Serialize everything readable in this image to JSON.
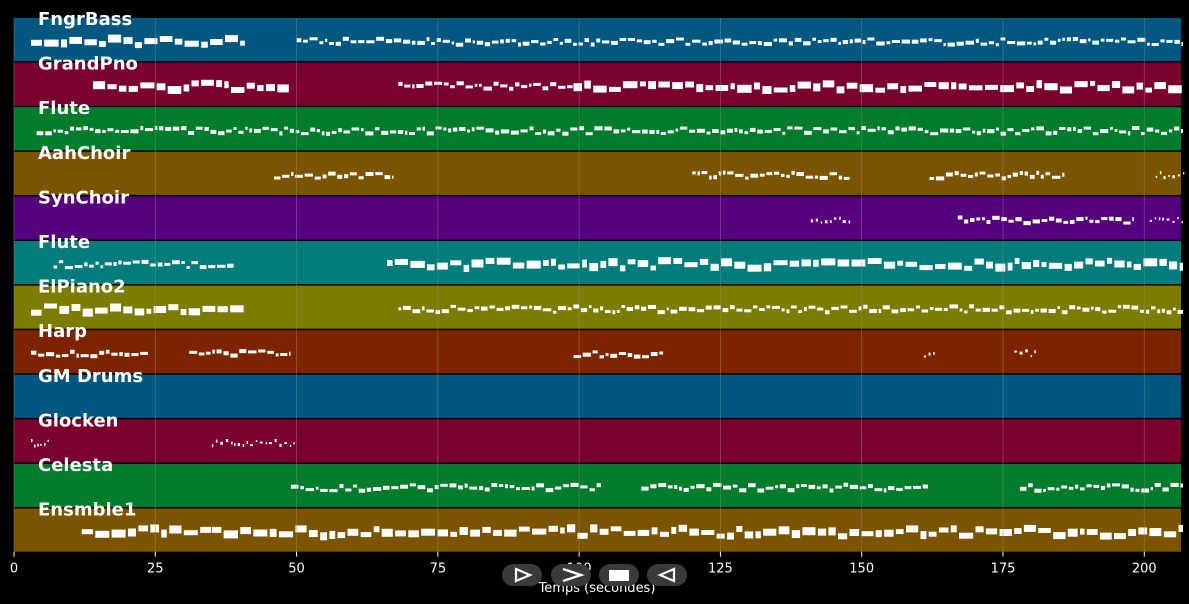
{
  "colors": {
    "background": "#000000",
    "note": "#ffffff",
    "grid": "#8a8a8a",
    "label": "#ffffff",
    "palette": [
      "#005780",
      "#7a0030",
      "#007c2a",
      "#7c5400",
      "#55007c",
      "#007c7c",
      "#7c7c00",
      "#7c2400"
    ]
  },
  "x_axis": {
    "label": "Temps (secondes)",
    "min": 0,
    "max": 206.5,
    "ticks": [
      0,
      25,
      50,
      75,
      100,
      125,
      150,
      175,
      200
    ]
  },
  "tracks": [
    {
      "name": "FngrBass",
      "color": "#005780",
      "segments": [
        [
          3,
          41,
          3
        ],
        [
          50,
          207,
          2
        ]
      ]
    },
    {
      "name": "GrandPno",
      "color": "#7a0030",
      "segments": [
        [
          14,
          49,
          3
        ],
        [
          68,
          99,
          2
        ],
        [
          99,
          207,
          3
        ]
      ]
    },
    {
      "name": "Flute",
      "color": "#007c2a",
      "segments": [
        [
          4,
          207,
          2
        ]
      ]
    },
    {
      "name": "AahChoir",
      "color": "#7c5400",
      "segments": [
        [
          46,
          67,
          2
        ],
        [
          120,
          148,
          2
        ],
        [
          162,
          186,
          2
        ],
        [
          202,
          207,
          1
        ]
      ]
    },
    {
      "name": "SynChoir",
      "color": "#55007c",
      "segments": [
        [
          141,
          148,
          1
        ],
        [
          167,
          198,
          2
        ],
        [
          201,
          207,
          1
        ]
      ]
    },
    {
      "name": "Flute",
      "color": "#007c7c",
      "segments": [
        [
          7,
          39,
          2
        ],
        [
          66,
          207,
          3
        ]
      ]
    },
    {
      "name": "ElPiano2",
      "color": "#7c7c00",
      "segments": [
        [
          3,
          41,
          3
        ],
        [
          68,
          207,
          2
        ]
      ]
    },
    {
      "name": "Harp",
      "color": "#7c2400",
      "segments": [
        [
          3,
          24,
          2
        ],
        [
          31,
          49,
          2
        ],
        [
          99,
          115,
          2
        ],
        [
          161,
          163,
          1
        ],
        [
          177,
          181,
          1
        ]
      ]
    },
    {
      "name": "GM Drums",
      "color": "#005780",
      "segments": []
    },
    {
      "name": "Glocken",
      "color": "#7a0030",
      "segments": [
        [
          3,
          6,
          1
        ],
        [
          35,
          50,
          1
        ]
      ]
    },
    {
      "name": "Celesta",
      "color": "#007c2a",
      "segments": [
        [
          49,
          104,
          2
        ],
        [
          111,
          162,
          2
        ],
        [
          178,
          207,
          2
        ]
      ]
    },
    {
      "name": "Ensmble1",
      "color": "#7c5400",
      "segments": [
        [
          12,
          35,
          3
        ],
        [
          35,
          207,
          3
        ]
      ]
    }
  ],
  "controls": [
    {
      "name": "play-button",
      "icon": "play-outline-icon"
    },
    {
      "name": "fast-forward-button",
      "icon": "chevron-right-icon"
    },
    {
      "name": "stop-button",
      "icon": "stop-icon"
    },
    {
      "name": "rewind-button",
      "icon": "rewind-outline-icon"
    }
  ]
}
